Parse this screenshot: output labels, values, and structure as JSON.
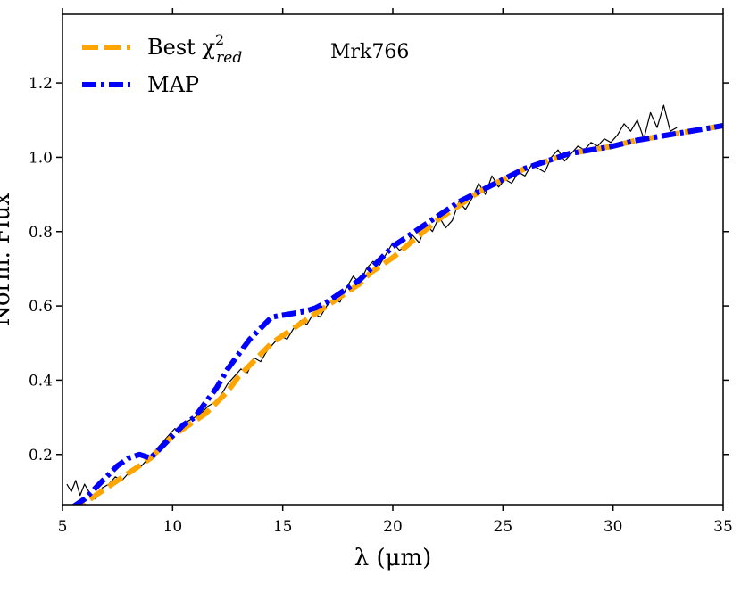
{
  "chart_data": {
    "type": "line",
    "xlabel": "λ (μm)",
    "ylabel": "Norm. Flux",
    "xlim": [
      5,
      35
    ],
    "ylim": [
      0.065,
      1.385
    ],
    "xticks": [
      5,
      10,
      15,
      20,
      25,
      30,
      35
    ],
    "yticks": [
      0.2,
      0.4,
      0.6,
      0.8,
      1.0,
      1.2
    ],
    "annotation": "Mrk766",
    "legend": {
      "placement": "top-left",
      "entries": [
        {
          "label_main": "Best χ",
          "label_sup": "2",
          "label_sub": "red",
          "series": "best"
        },
        {
          "label_main": "MAP",
          "series": "map"
        }
      ]
    },
    "series": [
      {
        "key": "observed",
        "color": "#000000",
        "style": "solid-thin",
        "x": [
          5.2,
          5.4,
          5.6,
          5.8,
          6.0,
          6.2,
          6.5,
          6.8,
          7.1,
          7.4,
          7.7,
          8.0,
          8.3,
          8.6,
          8.9,
          9.2,
          9.5,
          9.8,
          10.1,
          10.4,
          10.7,
          11.0,
          11.3,
          11.6,
          11.9,
          12.2,
          12.5,
          12.8,
          13.1,
          13.4,
          13.7,
          14.0,
          14.3,
          14.6,
          14.9,
          15.2,
          15.5,
          15.8,
          16.1,
          16.4,
          16.7,
          17.0,
          17.3,
          17.6,
          17.9,
          18.2,
          18.5,
          18.8,
          19.1,
          19.4,
          19.7,
          20.0,
          20.3,
          20.6,
          20.9,
          21.2,
          21.5,
          21.8,
          22.1,
          22.4,
          22.7,
          23.0,
          23.3,
          23.6,
          23.9,
          24.2,
          24.5,
          24.8,
          25.1,
          25.4,
          25.7,
          26.0,
          26.3,
          26.6,
          26.9,
          27.2,
          27.5,
          27.8,
          28.1,
          28.4,
          28.7,
          29.0,
          29.3,
          29.6,
          29.9,
          30.2,
          30.5,
          30.8,
          31.1,
          31.4,
          31.7,
          32.0,
          32.3,
          32.6,
          32.9
        ],
        "y": [
          0.12,
          0.1,
          0.13,
          0.09,
          0.12,
          0.1,
          0.08,
          0.11,
          0.12,
          0.14,
          0.13,
          0.15,
          0.16,
          0.17,
          0.19,
          0.21,
          0.23,
          0.25,
          0.27,
          0.26,
          0.29,
          0.3,
          0.31,
          0.33,
          0.34,
          0.36,
          0.39,
          0.41,
          0.43,
          0.42,
          0.46,
          0.45,
          0.48,
          0.5,
          0.52,
          0.51,
          0.54,
          0.56,
          0.55,
          0.58,
          0.57,
          0.6,
          0.62,
          0.61,
          0.65,
          0.68,
          0.66,
          0.7,
          0.72,
          0.71,
          0.74,
          0.77,
          0.75,
          0.76,
          0.79,
          0.77,
          0.82,
          0.8,
          0.84,
          0.81,
          0.83,
          0.88,
          0.86,
          0.89,
          0.93,
          0.9,
          0.95,
          0.92,
          0.94,
          0.93,
          0.96,
          0.95,
          0.98,
          0.97,
          0.96,
          1.0,
          1.02,
          0.99,
          1.01,
          1.03,
          1.02,
          1.04,
          1.03,
          1.05,
          1.04,
          1.06,
          1.09,
          1.07,
          1.1,
          1.05,
          1.12,
          1.08,
          1.14,
          1.07,
          1.08
        ]
      },
      {
        "key": "best",
        "color": "#FFA500",
        "style": "dashed",
        "x": [
          5.5,
          6.0,
          6.5,
          7.0,
          7.5,
          8.0,
          8.5,
          9.0,
          9.5,
          10.0,
          10.5,
          11.0,
          11.5,
          12.0,
          12.5,
          13.0,
          13.5,
          14.0,
          14.5,
          15.0,
          15.5,
          16.0,
          16.5,
          17.0,
          17.5,
          18.0,
          18.5,
          19.0,
          19.5,
          20.0,
          21.0,
          22.0,
          23.0,
          24.0,
          25.0,
          26.0,
          27.0,
          28.0,
          29.0,
          30.0,
          31.0,
          32.0,
          33.0,
          34.0,
          35.0
        ],
        "y": [
          0.04,
          0.07,
          0.09,
          0.11,
          0.13,
          0.15,
          0.17,
          0.19,
          0.22,
          0.25,
          0.27,
          0.29,
          0.31,
          0.34,
          0.37,
          0.41,
          0.44,
          0.47,
          0.5,
          0.52,
          0.54,
          0.56,
          0.58,
          0.6,
          0.62,
          0.64,
          0.66,
          0.69,
          0.71,
          0.73,
          0.78,
          0.83,
          0.87,
          0.91,
          0.94,
          0.97,
          0.99,
          1.01,
          1.02,
          1.03,
          1.045,
          1.055,
          1.065,
          1.075,
          1.085
        ]
      },
      {
        "key": "map",
        "color": "#0000FF",
        "style": "dashdot",
        "x": [
          5.5,
          6.0,
          6.5,
          7.0,
          7.5,
          8.0,
          8.5,
          9.0,
          9.5,
          10.0,
          10.5,
          11.0,
          11.5,
          12.0,
          12.5,
          13.0,
          13.5,
          14.0,
          14.5,
          15.0,
          15.5,
          16.0,
          16.5,
          17.0,
          17.5,
          18.0,
          18.5,
          19.0,
          19.5,
          20.0,
          21.0,
          22.0,
          23.0,
          24.0,
          25.0,
          26.0,
          27.0,
          28.0,
          29.0,
          30.0,
          31.0,
          32.0,
          33.0,
          34.0,
          35.0
        ],
        "y": [
          0.06,
          0.08,
          0.11,
          0.14,
          0.17,
          0.19,
          0.2,
          0.19,
          0.22,
          0.25,
          0.28,
          0.3,
          0.34,
          0.38,
          0.43,
          0.47,
          0.51,
          0.54,
          0.57,
          0.575,
          0.58,
          0.585,
          0.595,
          0.61,
          0.63,
          0.65,
          0.67,
          0.7,
          0.73,
          0.76,
          0.8,
          0.84,
          0.88,
          0.91,
          0.94,
          0.97,
          0.99,
          1.01,
          1.02,
          1.03,
          1.045,
          1.055,
          1.065,
          1.075,
          1.085
        ]
      }
    ]
  }
}
